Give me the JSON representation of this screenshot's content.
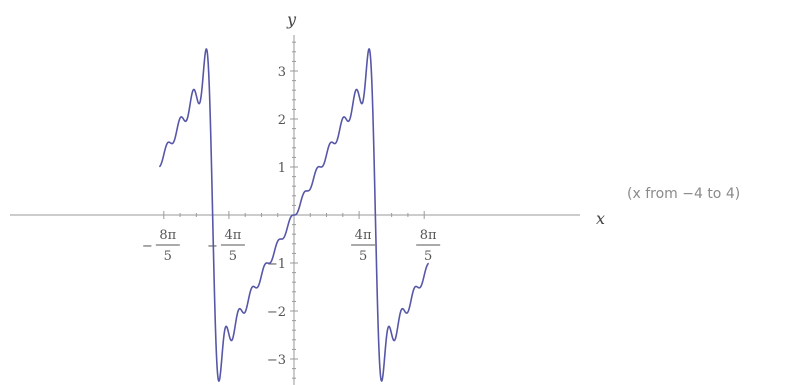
{
  "chart_data": {
    "type": "line",
    "title": "",
    "xlabel": "x",
    "ylabel": "y",
    "xlim": [
      -4,
      4
    ],
    "ylim": [
      -3.5,
      3.7
    ],
    "grid": false,
    "x_ticks": [
      {
        "value": -5.0265,
        "sign": "−",
        "numerator": "8π",
        "denominator": "5"
      },
      {
        "value": -2.5133,
        "sign": "−",
        "numerator": "4π",
        "denominator": "5"
      },
      {
        "value": 2.5133,
        "sign": "",
        "numerator": "4π",
        "denominator": "5"
      },
      {
        "value": 5.0265,
        "sign": "",
        "numerator": "8π",
        "denominator": "5"
      }
    ],
    "y_ticks": [
      {
        "value": 3,
        "label": "3"
      },
      {
        "value": 2,
        "label": "2"
      },
      {
        "value": 1,
        "label": "1"
      },
      {
        "value": -1,
        "label": "−1"
      },
      {
        "value": -2,
        "label": "−2"
      },
      {
        "value": -3,
        "label": "−3"
      }
    ],
    "series": [
      {
        "description_function": "Fourier partial sum of sawtooth: sum_{k=1}^{12} 2(-1)^(k+1) sin(kx)/k",
        "terms": 12,
        "color": "#5757a8"
      }
    ],
    "note": "(x from −4 to 4)"
  }
}
